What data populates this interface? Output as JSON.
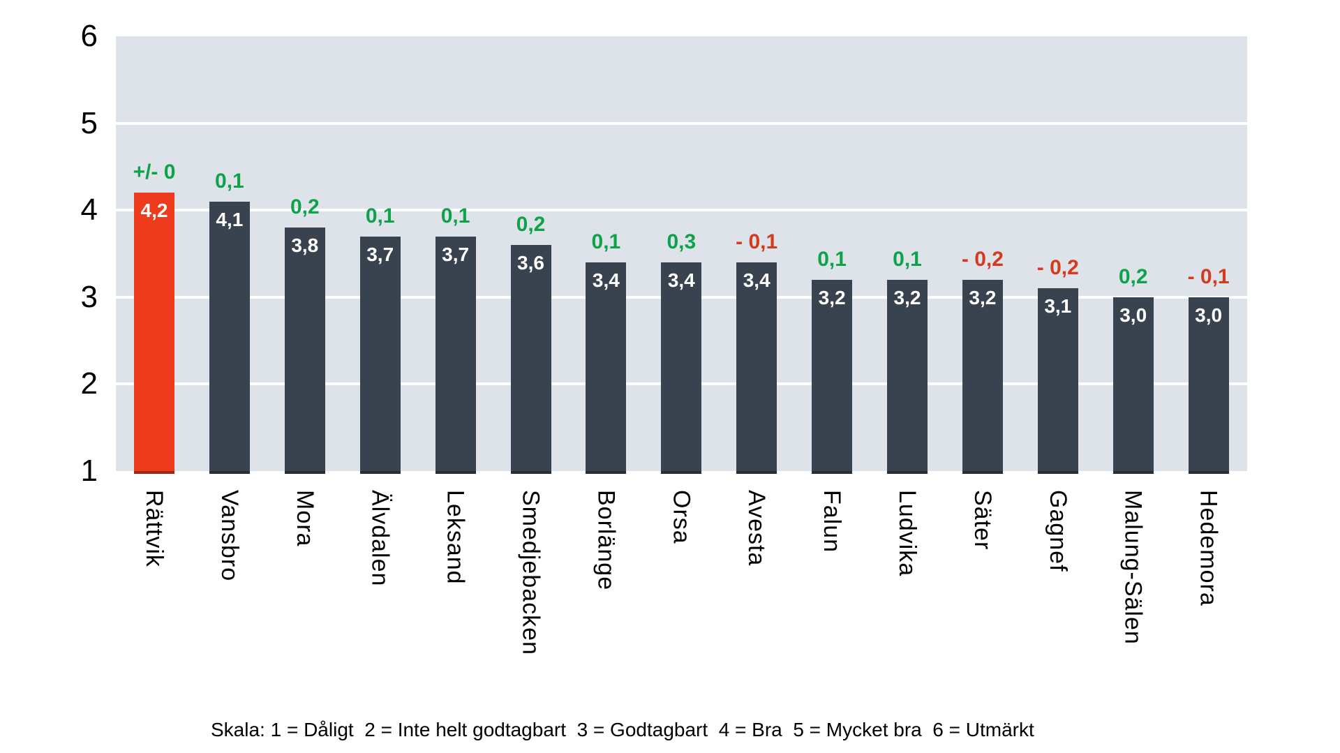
{
  "chart_data": {
    "type": "bar",
    "title": "",
    "categories": [
      "Rättvik",
      "Vansbro",
      "Mora",
      "Älvdalen",
      "Leksand",
      "Smedjebacken",
      "Borlänge",
      "Orsa",
      "Avesta",
      "Falun",
      "Ludvika",
      "Säter",
      "Gagnef",
      "Malung-Sälen",
      "Hedemora"
    ],
    "values": [
      4.2,
      4.1,
      3.8,
      3.7,
      3.7,
      3.6,
      3.4,
      3.4,
      3.4,
      3.2,
      3.2,
      3.2,
      3.1,
      3.0,
      3.0
    ],
    "value_labels": [
      "4,2",
      "4,1",
      "3,8",
      "3,7",
      "3,7",
      "3,6",
      "3,4",
      "3,4",
      "3,4",
      "3,2",
      "3,2",
      "3,2",
      "3,1",
      "3,0",
      "3,0"
    ],
    "delta_labels": [
      "+/- 0",
      "0,1",
      "0,2",
      "0,1",
      "0,1",
      "0,2",
      "0,1",
      "0,3",
      "- 0,1",
      "0,1",
      "0,1",
      "- 0,2",
      "- 0,2",
      "0,2",
      "- 0,1"
    ],
    "delta_colors": [
      "green",
      "green",
      "green",
      "green",
      "green",
      "green",
      "green",
      "green",
      "red",
      "green",
      "green",
      "red",
      "red",
      "green",
      "red"
    ],
    "highlight_index": 0,
    "y_axis": {
      "min": 1,
      "max": 6,
      "tick_labels": [
        "6",
        "5",
        "4",
        "3",
        "2",
        "1"
      ],
      "gridlines_at": [
        5,
        4,
        3,
        2
      ]
    },
    "colors": {
      "bar_default": "#39434F",
      "bar_highlight": "#EE3A1D",
      "plot_background": "#DEE3E9",
      "gridline": "#FFFFFF",
      "delta_positive": "#0EA24A",
      "delta_negative": "#D53A1D",
      "value_label": "#FFFFFF"
    },
    "ylim": [
      1,
      6
    ],
    "xlabel": "",
    "ylabel": "",
    "grid": true,
    "legend_position": "bottom",
    "footer": "Skala: 1 = Dåligt  2 = Inte helt godtagbart  3 = Godtagbart  4 = Bra  5 = Mycket bra  6 = Utmärkt"
  }
}
